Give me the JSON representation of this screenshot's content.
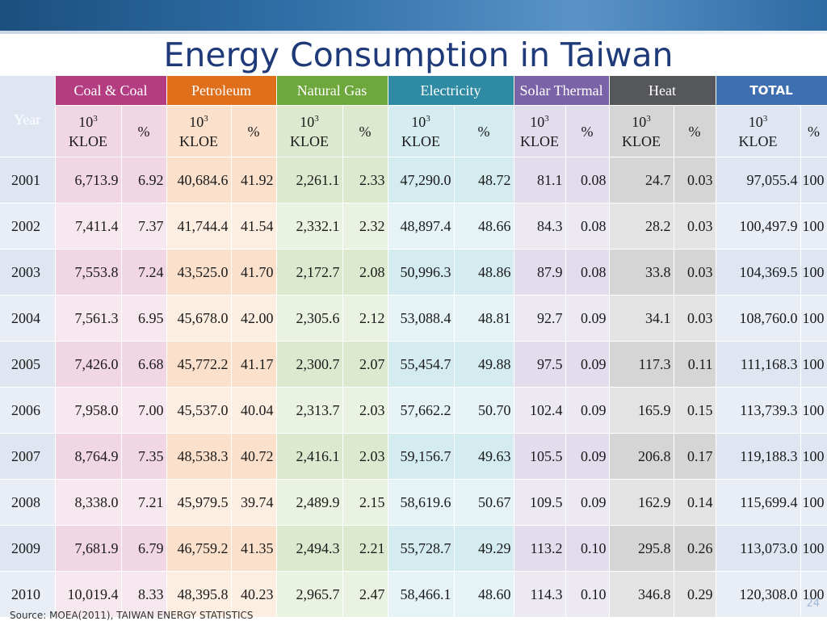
{
  "title": "Energy Consumption in Taiwan",
  "headers": {
    "year": "Year",
    "coal": "Coal & Coal",
    "petroleum": "Petroleum",
    "natural_gas": "Natural Gas",
    "electricity": "Electricity",
    "solar_thermal": "Solar Thermal",
    "heat": "Heat",
    "total": "TOTAL"
  },
  "subheaders": {
    "unit_base": "10",
    "unit_exp": "3",
    "unit_name": "KLOE",
    "percent": "%"
  },
  "rows": [
    {
      "year": "2001",
      "values": [
        "6,713.9",
        "6.92",
        "40,684.6",
        "41.92",
        "2,261.1",
        "2.33",
        "47,290.0",
        "48.72",
        "81.1",
        "0.08",
        "24.7",
        "0.03",
        "97,055.4",
        "100"
      ]
    },
    {
      "year": "2002",
      "values": [
        "7,411.4",
        "7.37",
        "41,744.4",
        "41.54",
        "2,332.1",
        "2.32",
        "48,897.4",
        "48.66",
        "84.3",
        "0.08",
        "28.2",
        "0.03",
        "100,497.9",
        "100"
      ]
    },
    {
      "year": "2003",
      "values": [
        "7,553.8",
        "7.24",
        "43,525.0",
        "41.70",
        "2,172.7",
        "2.08",
        "50,996.3",
        "48.86",
        "87.9",
        "0.08",
        "33.8",
        "0.03",
        "104,369.5",
        "100"
      ]
    },
    {
      "year": "2004",
      "values": [
        "7,561.3",
        "6.95",
        "45,678.0",
        "42.00",
        "2,305.6",
        "2.12",
        "53,088.4",
        "48.81",
        "92.7",
        "0.09",
        "34.1",
        "0.03",
        "108,760.0",
        "100"
      ]
    },
    {
      "year": "2005",
      "values": [
        "7,426.0",
        "6.68",
        "45,772.2",
        "41.17",
        "2,300.7",
        "2.07",
        "55,454.7",
        "49.88",
        "97.5",
        "0.09",
        "117.3",
        "0.11",
        "111,168.3",
        "100"
      ]
    },
    {
      "year": "2006",
      "values": [
        "7,958.0",
        "7.00",
        "45,537.0",
        "40.04",
        "2,313.7",
        "2.03",
        "57,662.2",
        "50.70",
        "102.4",
        "0.09",
        "165.9",
        "0.15",
        "113,739.3",
        "100"
      ]
    },
    {
      "year": "2007",
      "values": [
        "8,764.9",
        "7.35",
        "48,538.3",
        "40.72",
        "2,416.1",
        "2.03",
        "59,156.7",
        "49.63",
        "105.5",
        "0.09",
        "206.8",
        "0.17",
        "119,188.3",
        "100"
      ]
    },
    {
      "year": "2008",
      "values": [
        "8,338.0",
        "7.21",
        "45,979.5",
        "39.74",
        "2,489.9",
        "2.15",
        "58,619.6",
        "50.67",
        "109.5",
        "0.09",
        "162.9",
        "0.14",
        "115,699.4",
        "100"
      ]
    },
    {
      "year": "2009",
      "values": [
        "7,681.9",
        "6.79",
        "46,759.2",
        "41.35",
        "2,494.3",
        "2.21",
        "55,728.7",
        "49.29",
        "113.2",
        "0.10",
        "295.8",
        "0.26",
        "113,073.0",
        "100"
      ]
    },
    {
      "year": "2010",
      "values": [
        "10,019.4",
        "8.33",
        "48,395.8",
        "40.23",
        "2,965.7",
        "2.47",
        "58,466.1",
        "48.60",
        "114.3",
        "0.10",
        "346.8",
        "0.29",
        "120,308.0",
        "100"
      ]
    }
  ],
  "source": "Source: MOEA(2011), TAIWAN ENERGY STATISTICS",
  "page_number": "24"
}
